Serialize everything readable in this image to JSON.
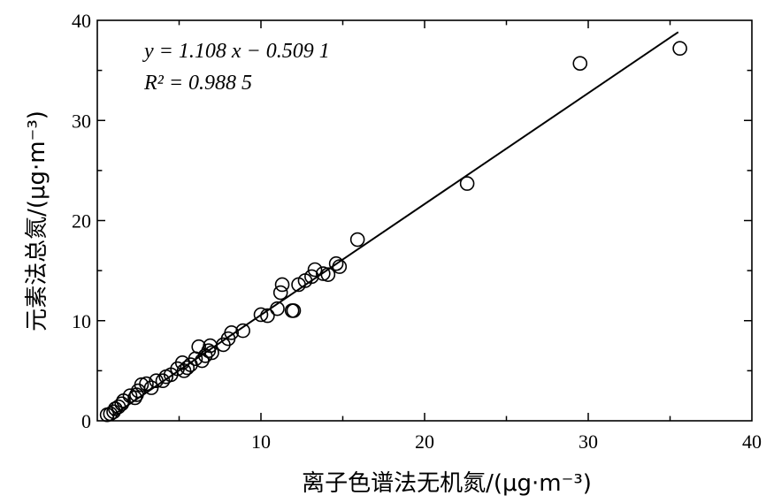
{
  "chart_data": {
    "type": "scatter",
    "title": "",
    "xlabel": "离子色谱法无机氮/(μg·m⁻³)",
    "ylabel": "元素法总氮/(μg·m⁻³)",
    "xlim": [
      0,
      40
    ],
    "ylim": [
      0,
      40
    ],
    "xticks": [
      "10",
      "20",
      "30",
      "40"
    ],
    "yticks": [
      "0",
      "10",
      "20",
      "30",
      "40"
    ],
    "grid": false,
    "legend": "none",
    "marker": "open-circle",
    "annotation": {
      "equation": "y = 1.108 x − 0.509 1",
      "r2": "R² = 0.988 5"
    },
    "fit_line": {
      "slope": 1.108,
      "intercept": -0.5091,
      "x_range": [
        0.9,
        35.5
      ]
    },
    "points": [
      [
        0.6,
        0.6
      ],
      [
        0.8,
        0.7
      ],
      [
        1.0,
        0.9
      ],
      [
        1.1,
        1.2
      ],
      [
        1.3,
        1.4
      ],
      [
        1.5,
        1.7
      ],
      [
        1.6,
        2.0
      ],
      [
        2.0,
        2.5
      ],
      [
        2.3,
        2.3
      ],
      [
        2.4,
        2.6
      ],
      [
        2.5,
        3.0
      ],
      [
        2.7,
        3.6
      ],
      [
        3.0,
        3.7
      ],
      [
        3.3,
        3.3
      ],
      [
        3.6,
        4.0
      ],
      [
        4.0,
        4.0
      ],
      [
        4.2,
        4.4
      ],
      [
        4.5,
        4.6
      ],
      [
        4.9,
        5.2
      ],
      [
        5.2,
        5.8
      ],
      [
        5.3,
        5.0
      ],
      [
        5.5,
        5.3
      ],
      [
        5.7,
        5.6
      ],
      [
        6.0,
        6.2
      ],
      [
        6.2,
        7.4
      ],
      [
        6.4,
        6.0
      ],
      [
        6.6,
        6.5
      ],
      [
        6.8,
        7.0
      ],
      [
        6.9,
        7.5
      ],
      [
        7.0,
        6.8
      ],
      [
        7.7,
        7.6
      ],
      [
        8.0,
        8.2
      ],
      [
        8.2,
        8.8
      ],
      [
        8.9,
        9.0
      ],
      [
        10.0,
        10.6
      ],
      [
        10.4,
        10.5
      ],
      [
        11.0,
        11.2
      ],
      [
        11.2,
        12.8
      ],
      [
        11.3,
        13.6
      ],
      [
        11.9,
        11.0
      ],
      [
        12.0,
        11.0
      ],
      [
        12.3,
        13.6
      ],
      [
        12.7,
        14.0
      ],
      [
        13.1,
        14.4
      ],
      [
        13.3,
        15.1
      ],
      [
        13.8,
        14.7
      ],
      [
        14.1,
        14.6
      ],
      [
        14.6,
        15.7
      ],
      [
        14.8,
        15.4
      ],
      [
        15.9,
        18.1
      ],
      [
        22.6,
        23.7
      ],
      [
        29.5,
        35.7
      ],
      [
        35.6,
        37.2
      ]
    ]
  }
}
